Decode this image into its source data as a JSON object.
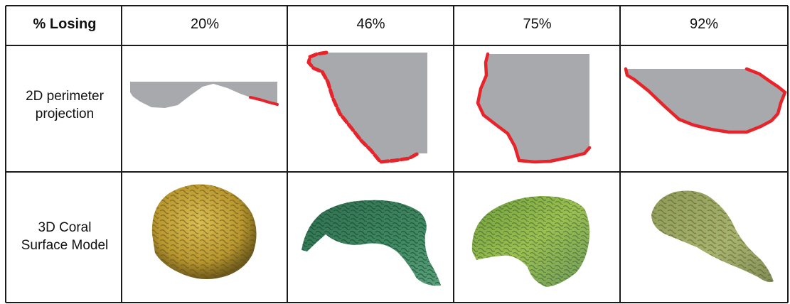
{
  "table": {
    "corner_label": "% Losing",
    "columns": [
      "20%",
      "46%",
      "75%",
      "92%"
    ],
    "rows": [
      {
        "label_line1": "2D perimeter",
        "label_line2": "projection"
      },
      {
        "label_line1": "3D Coral",
        "label_line2": "Surface Model"
      }
    ]
  },
  "colors": {
    "grid": "#1a1a1a",
    "projection_fill": "#a7a9ac",
    "losing_edge": "#e8232a",
    "coral_yellow": "#c7a83a",
    "coral_green": "#3f8a62",
    "coral_lime": "#8fb34a",
    "coral_olive": "#9aa862"
  }
}
